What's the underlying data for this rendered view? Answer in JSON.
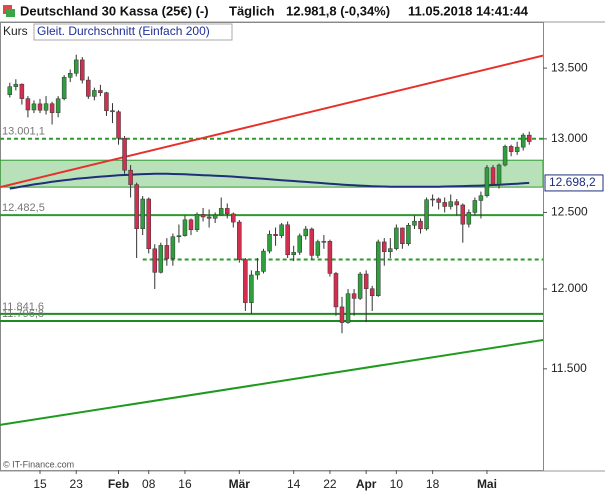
{
  "header": {
    "instrument": "Deutschland 30 Kassa (25€) (-)",
    "period": "Täglich",
    "quote": "12.981,8 (-0,34%)",
    "timestamp": "11.05.2018 14:41:44"
  },
  "footer": "© IT-Finance.com",
  "chart_data": {
    "type": "candlestick",
    "yscale": "log",
    "ylim": [
      10896,
      13836
    ],
    "yticks": [
      {
        "value": 13500,
        "label": "13.500"
      },
      {
        "value": 13000,
        "label": "13.000"
      },
      {
        "value": 12500,
        "label": "12.500"
      },
      {
        "value": 12000,
        "label": "12.000"
      },
      {
        "value": 11500,
        "label": "11.500"
      }
    ],
    "categories": [
      null,
      null,
      null,
      null,
      null,
      "15",
      null,
      null,
      null,
      null,
      null,
      "23",
      null,
      null,
      null,
      null,
      null,
      null,
      "Feb",
      null,
      null,
      null,
      null,
      "08",
      null,
      null,
      null,
      null,
      null,
      "16",
      null,
      null,
      null,
      null,
      null,
      null,
      null,
      null,
      "Mär",
      null,
      null,
      null,
      null,
      null,
      null,
      null,
      null,
      "14",
      null,
      null,
      null,
      null,
      null,
      "22",
      null,
      null,
      null,
      null,
      null,
      "Apr",
      null,
      null,
      null,
      null,
      "10",
      null,
      null,
      null,
      null,
      null,
      "18",
      null,
      null,
      null,
      null,
      null,
      null,
      null,
      null,
      "Mai",
      null,
      null,
      null,
      null,
      null,
      null,
      null
    ],
    "price": {
      "name": "Kurs",
      "up_color": "#2f9e3c",
      "down_color": "#d12f4f",
      "open": [
        13310,
        13367,
        13385,
        13282,
        13202,
        13245,
        13200,
        13246,
        13183,
        13281,
        13434,
        13463,
        13559,
        13414,
        13298,
        13340,
        13324,
        13197,
        13189,
        13004,
        12785,
        12687,
        12392,
        12590,
        12260,
        12107,
        12282,
        12196,
        12339,
        12346,
        12451,
        12385,
        12487,
        12470,
        12461,
        12483,
        12527,
        12490,
        12436,
        12190,
        11913,
        12090,
        12113,
        12245,
        12355,
        12346,
        12418,
        12221,
        12237,
        12345,
        12390,
        12217,
        12307,
        12309,
        12100,
        11886,
        11787,
        11970,
        11940,
        12096,
        12002,
        11957,
        12305,
        12241,
        12261,
        12397,
        12293,
        12415,
        12442,
        12391,
        12585,
        12590,
        12567,
        12540,
        12572,
        12550,
        12422,
        12500,
        12580,
        12612,
        12802,
        12690,
        12820,
        12948,
        12912,
        12943,
        13026
      ],
      "high": [
        13395,
        13420,
        13390,
        13300,
        13270,
        13280,
        13300,
        13260,
        13300,
        13450,
        13490,
        13597,
        13580,
        13440,
        13360,
        13380,
        13330,
        13250,
        13200,
        13020,
        12820,
        12700,
        12610,
        12600,
        12290,
        12300,
        12330,
        12360,
        12420,
        12480,
        12460,
        12500,
        12530,
        12520,
        12500,
        12600,
        12560,
        12500,
        12450,
        12200,
        12120,
        12200,
        12260,
        12380,
        12400,
        12430,
        12440,
        12280,
        12360,
        12410,
        12400,
        12320,
        12350,
        12320,
        12110,
        11950,
        12000,
        12000,
        12110,
        12120,
        12020,
        12320,
        12330,
        12330,
        12420,
        12400,
        12430,
        12480,
        12460,
        12600,
        12620,
        12600,
        12600,
        12620,
        12590,
        12560,
        12520,
        12600,
        12640,
        12820,
        12820,
        12830,
        12960,
        12960,
        12980,
        13040,
        13050
      ],
      "low": [
        13290,
        13340,
        13240,
        13150,
        13180,
        13180,
        13170,
        13100,
        13150,
        13270,
        13400,
        13440,
        13390,
        13280,
        13270,
        13300,
        13160,
        13110,
        12960,
        12760,
        12600,
        12200,
        12350,
        12230,
        12000,
        12100,
        12150,
        12150,
        12300,
        12340,
        12350,
        12370,
        12440,
        12400,
        12430,
        12480,
        12460,
        12400,
        12170,
        11860,
        11840,
        12060,
        12100,
        12230,
        12280,
        12330,
        12200,
        12180,
        12220,
        12320,
        12190,
        12200,
        12260,
        12080,
        11830,
        11720,
        11780,
        11830,
        11930,
        11790,
        11860,
        11950,
        12150,
        12200,
        12250,
        12260,
        12280,
        12390,
        12360,
        12380,
        12540,
        12520,
        12500,
        12520,
        12480,
        12300,
        12400,
        12480,
        12460,
        12600,
        12680,
        12660,
        12810,
        12880,
        12890,
        12920,
        12960
      ],
      "close": [
        13367,
        13385,
        13282,
        13202,
        13245,
        13200,
        13246,
        13183,
        13281,
        13434,
        13463,
        13559,
        13414,
        13298,
        13340,
        13324,
        13197,
        13189,
        13004,
        12785,
        12687,
        12392,
        12590,
        12260,
        12107,
        12282,
        12196,
        12339,
        12346,
        12451,
        12385,
        12487,
        12470,
        12461,
        12483,
        12527,
        12490,
        12436,
        12190,
        11913,
        12090,
        12113,
        12245,
        12355,
        12346,
        12418,
        12221,
        12237,
        12345,
        12390,
        12217,
        12307,
        12309,
        12100,
        11886,
        11787,
        11970,
        11940,
        12096,
        12002,
        11957,
        12305,
        12241,
        12261,
        12397,
        12293,
        12415,
        12442,
        12391,
        12585,
        12590,
        12567,
        12540,
        12572,
        12550,
        12422,
        12500,
        12580,
        12612,
        12802,
        12690,
        12820,
        12948,
        12912,
        12943,
        13026,
        12981.8
      ]
    },
    "series": [
      {
        "name": "Gleit. Durchschnitt (Einfach 200)",
        "color": "#1f2f7a",
        "values": [
          12660,
          12667,
          12674,
          12681,
          12688,
          12694,
          12700,
          12706,
          12711,
          12716,
          12721,
          12726,
          12730,
          12734,
          12738,
          12741,
          12744,
          12747,
          12750,
          12752,
          12754,
          12756,
          12758,
          12759,
          12760,
          12760,
          12760,
          12759,
          12758,
          12757,
          12755,
          12753,
          12751,
          12749,
          12747,
          12745,
          12743,
          12741,
          12738,
          12735,
          12732,
          12729,
          12726,
          12723,
          12720,
          12717,
          12714,
          12711,
          12708,
          12705,
          12702,
          12699,
          12696,
          12693,
          12690,
          12687,
          12684,
          12682,
          12680,
          12678,
          12676,
          12675,
          12674,
          12673,
          12673,
          12672,
          12672,
          12672,
          12672,
          12672,
          12673,
          12673,
          12674,
          12675,
          12676,
          12677,
          12678,
          12679,
          12680,
          12682,
          12684,
          12686,
          12688,
          12691,
          12693,
          12696,
          12698.2
        ],
        "last_label": "12.698,2"
      }
    ],
    "band": {
      "low": 12670,
      "high": 12853,
      "color": "#7fc97f"
    },
    "trendlines": [
      {
        "start": 12670,
        "end": 13590,
        "color": "#e8302a"
      },
      {
        "start": 11161,
        "end": 11678,
        "color": "#1f9a1f"
      }
    ],
    "levels": [
      {
        "value": 13001.1,
        "label": "13.001,1",
        "style": "dashed",
        "color": "#2e9a2e"
      },
      {
        "value": 12482.5,
        "label": "12.482,5",
        "style": "solid",
        "color": "#2e9a2e"
      },
      {
        "value": 11841.6,
        "label": "11.841,6",
        "style": "solid",
        "color": "#1f8a1f"
      },
      {
        "value": 11796.8,
        "label": "11.796,8",
        "style": "solid",
        "color": "#1f8a1f"
      },
      {
        "value": 12190,
        "style": "dashed",
        "color": "#2e9a2e",
        "from_index": 22
      }
    ]
  }
}
